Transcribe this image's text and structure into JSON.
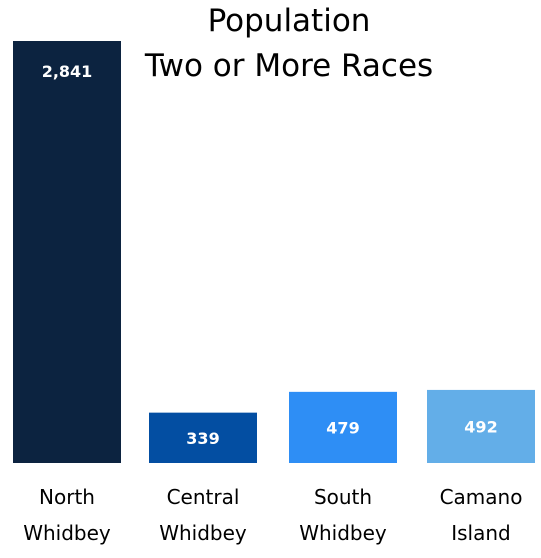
{
  "chart_data": {
    "type": "bar",
    "title": "Population\nTwo or More Races",
    "title_lines": [
      "Population",
      "Two or More Races"
    ],
    "categories": [
      "North Whidbey",
      "Central Whidbey",
      "South Whidbey",
      "Camano Island"
    ],
    "category_lines": [
      [
        "North",
        "Whidbey"
      ],
      [
        "Central",
        "Whidbey"
      ],
      [
        "South",
        "Whidbey"
      ],
      [
        "Camano",
        "Island"
      ]
    ],
    "values": [
      2841,
      339,
      479,
      492
    ],
    "value_labels": [
      "2,841",
      "339",
      "479",
      "492"
    ],
    "colors": [
      "#0c2340",
      "#034ea2",
      "#2e8ef5",
      "#63aee8"
    ],
    "xlabel": "",
    "ylabel": "",
    "ylim": [
      0,
      2841
    ],
    "grid": false
  }
}
